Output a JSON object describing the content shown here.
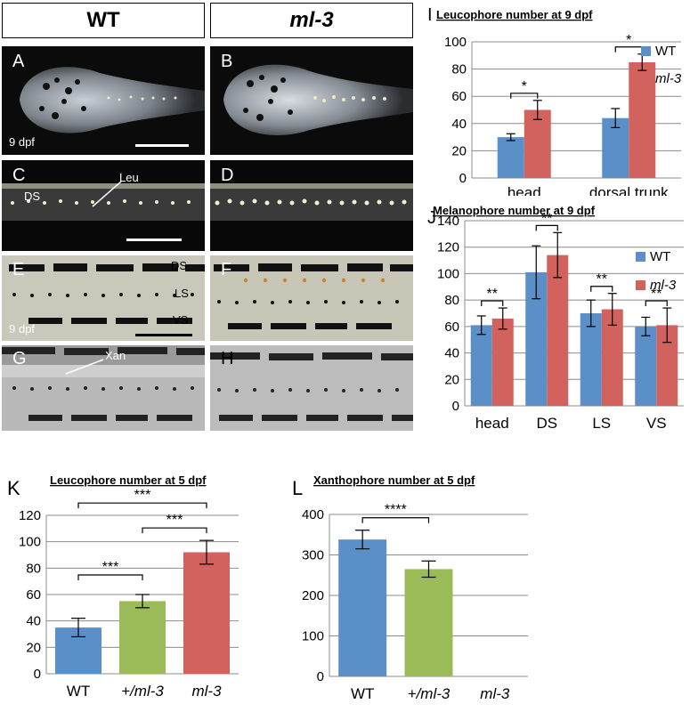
{
  "headers": {
    "left": "WT",
    "right": "ml-3"
  },
  "panel_labels": {
    "A": "A",
    "B": "B",
    "C": "C",
    "D": "D",
    "E": "E",
    "F": "F",
    "G": "G",
    "H": "H",
    "I": "I",
    "J": "J",
    "K": "K",
    "L": "L"
  },
  "photo_annotations": {
    "age_a": "9 dpf",
    "age_e": "9 dpf",
    "ds": "DS",
    "leu": "Leu",
    "ds_e": "DS",
    "ls_e": "LS",
    "vs_e": "VS",
    "xan": "Xan"
  },
  "colors": {
    "wt": "#5b8fc8",
    "ml3": "#d2625d",
    "het": "#9bbb59",
    "grid": "#8c8c8c"
  },
  "chart_data": [
    {
      "id": "I",
      "type": "bar",
      "title": "Leucophore number at 9 dpf",
      "categories": [
        "head",
        "dorsal trunk"
      ],
      "series": [
        {
          "name": "WT",
          "values": [
            30,
            44
          ],
          "errors": [
            2.5,
            7
          ]
        },
        {
          "name": "ml-3",
          "values": [
            50,
            85
          ],
          "errors": [
            7,
            6
          ]
        }
      ],
      "ylim": [
        0,
        100
      ],
      "yticks": [
        "0",
        "20",
        "40",
        "60",
        "80",
        "100"
      ],
      "legend": [
        "WT",
        "ml-3"
      ],
      "significance": [
        "*",
        "*"
      ]
    },
    {
      "id": "J",
      "type": "bar",
      "title": "Melanophore number at 9 dpf",
      "categories": [
        "head",
        "DS",
        "LS",
        "VS"
      ],
      "series": [
        {
          "name": "WT",
          "values": [
            61,
            101,
            70,
            60
          ],
          "errors": [
            7,
            20,
            10,
            7
          ]
        },
        {
          "name": "ml-3",
          "values": [
            66,
            114,
            73,
            61
          ],
          "errors": [
            8,
            17,
            12,
            13
          ]
        }
      ],
      "ylim": [
        0,
        140
      ],
      "yticks": [
        "0",
        "20",
        "40",
        "60",
        "80",
        "100",
        "120",
        "140"
      ],
      "legend": [
        "WT",
        "ml-3"
      ],
      "significance": [
        "**",
        "**",
        "**",
        "**"
      ]
    },
    {
      "id": "K",
      "type": "bar",
      "title": "Leucophore number at 5 dpf",
      "categories": [
        "WT",
        "+/ml-3",
        "ml-3"
      ],
      "values": [
        35,
        55,
        92
      ],
      "errors": [
        7,
        5,
        9
      ],
      "ylim": [
        0,
        120
      ],
      "yticks": [
        "0",
        "20",
        "40",
        "60",
        "80",
        "100",
        "120"
      ],
      "significance": [
        "***",
        "***",
        "***"
      ]
    },
    {
      "id": "L",
      "type": "bar",
      "title": "Xanthophore number at 5 dpf",
      "categories": [
        "WT",
        "+/ml-3",
        "ml-3"
      ],
      "values": [
        338,
        265,
        0
      ],
      "errors": [
        23,
        20,
        0
      ],
      "ylim": [
        0,
        400
      ],
      "yticks": [
        "0",
        "100",
        "200",
        "300",
        "400"
      ],
      "significance": [
        "****"
      ]
    }
  ]
}
